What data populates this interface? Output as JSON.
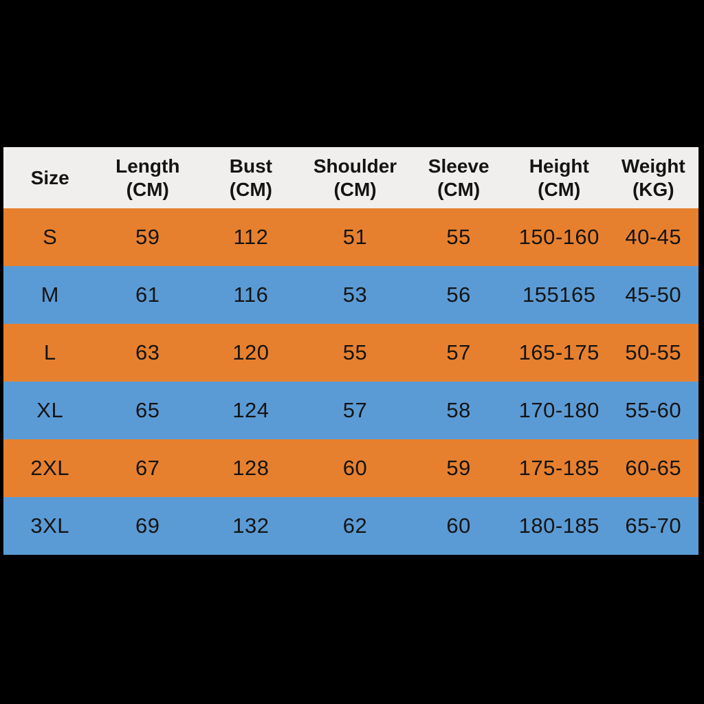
{
  "colors": {
    "page_bg": "#000000",
    "header_bg": "#F0EFED",
    "orange": "#E7802E",
    "blue": "#5B9BD5",
    "text": "#141414"
  },
  "table": {
    "header": [
      {
        "line1": "Size",
        "line2": ""
      },
      {
        "line1": "Length",
        "line2": "(CM)"
      },
      {
        "line1": "Bust",
        "line2": "(CM)"
      },
      {
        "line1": "Shoulder",
        "line2": "(CM)"
      },
      {
        "line1": "Sleeve",
        "line2": "(CM)"
      },
      {
        "line1": "Height",
        "line2": "(CM)"
      },
      {
        "line1": "Weight",
        "line2": "(KG)"
      }
    ],
    "row_tones": [
      "orange",
      "blue",
      "orange",
      "blue",
      "orange",
      "blue"
    ]
  },
  "chart_data": {
    "type": "table",
    "columns": [
      "Size",
      "Length (CM)",
      "Bust (CM)",
      "Shoulder (CM)",
      "Sleeve (CM)",
      "Height (CM)",
      "Weight (KG)"
    ],
    "rows": [
      [
        "S",
        "59",
        "112",
        "51",
        "55",
        "150-160",
        "40-45"
      ],
      [
        "M",
        "61",
        "116",
        "53",
        "56",
        "155165",
        "45-50"
      ],
      [
        "L",
        "63",
        "120",
        "55",
        "57",
        "165-175",
        "50-55"
      ],
      [
        "XL",
        "65",
        "124",
        "57",
        "58",
        "170-180",
        "55-60"
      ],
      [
        "2XL",
        "67",
        "128",
        "60",
        "59",
        "175-185",
        "60-65"
      ],
      [
        "3XL",
        "69",
        "132",
        "62",
        "60",
        "180-185",
        "65-70"
      ]
    ],
    "layout_hints": {
      "row_fill_alternating": [
        "orange",
        "blue"
      ],
      "header_fill": "light-gray",
      "grid": false,
      "text_align": "center"
    }
  }
}
